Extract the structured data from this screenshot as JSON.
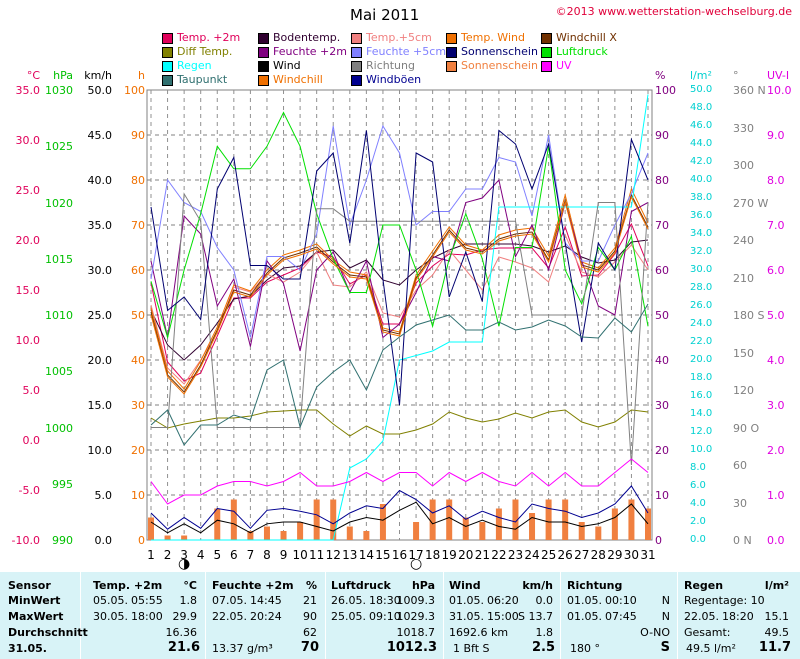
{
  "header": {
    "title": "Mai 2011",
    "copyright": "©2013 www.wetterstation-wechselburg.de"
  },
  "legend": [
    {
      "label": "Temp. +2m",
      "color": "#e0005a"
    },
    {
      "label": "Bodentemp.",
      "color": "#300030"
    },
    {
      "label": "Temp.+5cm",
      "color": "#f08080"
    },
    {
      "label": "Temp. Wind",
      "color": "#f07000"
    },
    {
      "label": "Windchill X",
      "color": "#703000"
    },
    {
      "label": "Diff Temp.",
      "color": "#808000"
    },
    {
      "label": "Feuchte +2m",
      "color": "#800080"
    },
    {
      "label": "Feuchte +5cm",
      "color": "#8080ff"
    },
    {
      "label": "Sonnenschein",
      "color": "#000070"
    },
    {
      "label": "Luftdruck",
      "color": "#00e000"
    },
    {
      "label": "Regen",
      "color": "#00ffff"
    },
    {
      "label": "Wind",
      "color": "#000000"
    },
    {
      "label": "Richtung",
      "color": "#808080"
    },
    {
      "label": "Sonnenschein",
      "color": "#f08040"
    },
    {
      "label": "UV",
      "color": "#ff00ff"
    },
    {
      "label": "Taupunkt",
      "color": "#307070"
    },
    {
      "label": "Windchill",
      "color": "#f07000"
    },
    {
      "label": "Windböen",
      "color": "#000090"
    }
  ],
  "axes": {
    "temp": {
      "name": "°C",
      "color": "#e0005a",
      "ticks": [
        "35.0",
        "30.0",
        "25.0",
        "20.0",
        "15.0",
        "10.0",
        "5.0",
        "0.0",
        "-5.0",
        "-10.0"
      ]
    },
    "pressure": {
      "name": "hPa",
      "color": "#00c000",
      "ticks": [
        "1030",
        "1025",
        "1020",
        "1015",
        "1010",
        "1005",
        "1000",
        "995",
        "990"
      ]
    },
    "wind": {
      "name": "km/h",
      "color": "#000000",
      "ticks": [
        "50.0",
        "45.0",
        "40.0",
        "35.0",
        "30.0",
        "25.0",
        "20.0",
        "15.0",
        "10.0",
        "5.0",
        "0.0"
      ]
    },
    "sun": {
      "name": "h",
      "color": "#f07000",
      "ticks": [
        "100",
        "90",
        "80",
        "70",
        "60",
        "50",
        "40",
        "30",
        "20",
        "10",
        "0"
      ]
    },
    "humidity": {
      "name": "%",
      "color": "#800080",
      "ticks": [
        "100",
        "90",
        "80",
        "70",
        "60",
        "50",
        "40",
        "30",
        "20",
        "10",
        "0"
      ]
    },
    "rain": {
      "name": "l/m²",
      "color": "#00d0d0",
      "ticks": [
        "50.0",
        "48.0",
        "46.0",
        "44.0",
        "42.0",
        "40.0",
        "38.0",
        "36.0",
        "34.0",
        "32.0",
        "30.0",
        "28.0",
        "26.0",
        "24.0",
        "22.0",
        "20.0",
        "18.0",
        "16.0",
        "14.0",
        "12.0",
        "10.0",
        "8.0",
        "6.0",
        "4.0",
        "2.0",
        "0.0"
      ]
    },
    "dir": {
      "name": "°",
      "color": "#808080",
      "ticks": [
        "360 N",
        "330",
        "300",
        "270 W",
        "240",
        "210",
        "180 S",
        "150",
        "120",
        "90 O",
        "60",
        "30",
        "0 N"
      ]
    },
    "uv": {
      "name": "UV-I",
      "color": "#e000e0",
      "ticks": [
        "10.0",
        "9.0",
        "8.0",
        "7.0",
        "6.0",
        "5.0",
        "4.0",
        "3.0",
        "2.0",
        "1.0",
        "0.0"
      ]
    }
  },
  "chart_data": {
    "type": "line",
    "x": [
      1,
      2,
      3,
      4,
      5,
      6,
      7,
      8,
      9,
      10,
      11,
      12,
      13,
      14,
      15,
      16,
      17,
      18,
      19,
      20,
      21,
      22,
      23,
      24,
      25,
      26,
      27,
      28,
      29,
      30,
      31
    ],
    "x_tick_labels": [
      "1",
      "2",
      "3",
      "4",
      "5",
      "6",
      "7",
      "8",
      "9",
      "10",
      "11",
      "12",
      "13",
      "14",
      "15",
      "16",
      "17",
      "18",
      "19",
      "20",
      "21",
      "22",
      "23",
      "24",
      "25",
      "26",
      "27",
      "28",
      "29",
      "30",
      "31"
    ],
    "moon_phases": [
      {
        "day": 3,
        "symbol": "◑"
      },
      {
        "day": 17,
        "symbol": "○"
      }
    ],
    "series": [
      {
        "name": "Temp. +2m",
        "axis": "temp",
        "color": "#e0005a",
        "values": [
          15.7,
          7.8,
          5.9,
          6.7,
          10.4,
          14.2,
          14.2,
          15.8,
          16.5,
          17.2,
          18.8,
          18.3,
          15.6,
          16.5,
          11.6,
          11.6,
          15.7,
          17.4,
          18.6,
          18.5,
          19.0,
          19.2,
          19.2,
          19.2,
          17.2,
          21.3,
          16.4,
          16.5,
          18.6,
          21.6,
          17.4
        ]
      },
      {
        "name": "Bodentemp.",
        "axis": "temp",
        "color": "#300030",
        "values": [
          13.0,
          9.5,
          8.0,
          9.5,
          11.7,
          14.1,
          14.4,
          16.0,
          17.2,
          17.4,
          18.8,
          19.0,
          17.2,
          18.0,
          16.0,
          15.5,
          17.0,
          18.2,
          19.0,
          19.6,
          19.6,
          19.6,
          19.6,
          19.4,
          18.8,
          19.4,
          18.3,
          17.7,
          18.0,
          19.8,
          20.0
        ]
      },
      {
        "name": "Temp.+5cm",
        "axis": "temp",
        "color": "#f08080",
        "values": [
          13.5,
          7.2,
          5.6,
          8.0,
          10.8,
          15.3,
          14.8,
          16.6,
          15.8,
          16.8,
          18.8,
          15.5,
          15.3,
          16.8,
          12.7,
          12.3,
          15.0,
          16.5,
          19.0,
          17.0,
          15.0,
          18.3,
          17.8,
          17.2,
          15.8,
          20.5,
          16.8,
          16.3,
          17.8,
          19.5,
          17.0
        ]
      },
      {
        "name": "Temp. Wind",
        "axis": "temp",
        "color": "#f07000",
        "values": [
          13.2,
          6.9,
          5.1,
          7.9,
          11.3,
          15.5,
          14.9,
          17.0,
          18.5,
          19.0,
          19.6,
          18.0,
          16.8,
          16.5,
          11.2,
          10.8,
          16.5,
          18.9,
          21.3,
          19.5,
          19.0,
          20.5,
          21.0,
          21.2,
          18.4,
          24.5,
          17.8,
          17.2,
          19.2,
          25.1,
          21.7
        ]
      },
      {
        "name": "Windchill X",
        "axis": "temp",
        "color": "#703000",
        "values": [
          12.8,
          6.5,
          4.8,
          7.5,
          11.0,
          15.0,
          14.5,
          16.7,
          18.2,
          18.7,
          19.3,
          17.8,
          16.5,
          16.3,
          11.0,
          10.6,
          16.2,
          18.5,
          21.0,
          19.2,
          18.8,
          20.1,
          20.6,
          20.8,
          18.0,
          24.0,
          17.5,
          17.0,
          18.9,
          24.5,
          21.3
        ]
      },
      {
        "name": "Diff Temp.",
        "axis": "temp",
        "color": "#808000",
        "values": [
          2.2,
          1.2,
          1.6,
          1.9,
          2.2,
          2.2,
          2.4,
          2.8,
          2.9,
          3.0,
          3.0,
          1.6,
          0.4,
          1.4,
          0.6,
          0.6,
          1.0,
          1.6,
          2.8,
          2.2,
          1.8,
          2.1,
          2.7,
          2.2,
          2.8,
          3.0,
          1.8,
          1.3,
          1.8,
          3.0,
          2.8
        ]
      },
      {
        "name": "Feuchte +2m",
        "axis": "humidity",
        "color": "#800080",
        "values": [
          62,
          45,
          72,
          68,
          52,
          58,
          43,
          62,
          57,
          42,
          60,
          64,
          55,
          62,
          45,
          48,
          55,
          63,
          62,
          75,
          76,
          80,
          63,
          70,
          60,
          75,
          62,
          52,
          50,
          73,
          75
        ]
      },
      {
        "name": "Feuchte +5cm",
        "axis": "humidity",
        "color": "#8080ff",
        "values": [
          58,
          80,
          75,
          73,
          65,
          60,
          45,
          63,
          63,
          60,
          68,
          92,
          70,
          80,
          92,
          86,
          70,
          73,
          73,
          78,
          78,
          85,
          84,
          72,
          90,
          66,
          62,
          62,
          70,
          77,
          86
        ]
      },
      {
        "name": "Luftdruck",
        "axis": "pressure",
        "color": "#00e000",
        "values": [
          1013,
          1008,
          1014,
          1019,
          1025,
          1023,
          1023,
          1025,
          1028,
          1025,
          1019,
          1015,
          1012,
          1012,
          1018,
          1018,
          1014,
          1009,
          1015,
          1019,
          1015,
          1009,
          1016,
          1016,
          1025,
          1014,
          1011,
          1016,
          1014,
          1017,
          1009
        ]
      },
      {
        "name": "Regen",
        "axis": "rain",
        "color": "#00ffff",
        "values": [
          0,
          0,
          0,
          0,
          0,
          0,
          0,
          0,
          0,
          0,
          0,
          0,
          8,
          9,
          11,
          20,
          20.5,
          21,
          22,
          22,
          22,
          37,
          37,
          37,
          37,
          37,
          37,
          37,
          37,
          37,
          49.5
        ]
      },
      {
        "name": "Wind",
        "axis": "wind",
        "color": "#000000",
        "values": [
          2.0,
          0.8,
          1.8,
          0.8,
          2.2,
          1.8,
          0.8,
          1.8,
          2.0,
          2.0,
          1.5,
          1.0,
          2.0,
          2.5,
          2.2,
          3.3,
          4.2,
          1.8,
          2.5,
          1.5,
          2.2,
          1.5,
          1.2,
          2.5,
          2.0,
          2.0,
          1.5,
          1.8,
          2.5,
          4.0,
          1.8
        ]
      },
      {
        "name": "Windböen",
        "axis": "wind",
        "color": "#000090",
        "values": [
          3.0,
          1.2,
          2.5,
          1.3,
          3.5,
          3.2,
          1.3,
          3.3,
          3.5,
          3.2,
          2.8,
          1.8,
          3.0,
          3.8,
          3.5,
          5.5,
          4.5,
          3.0,
          3.8,
          2.3,
          3.2,
          2.5,
          2.0,
          4.0,
          3.5,
          3.2,
          2.5,
          3.0,
          4.0,
          6.0,
          3.0
        ]
      },
      {
        "name": "Richtung",
        "axis": "dir",
        "color": "#808080",
        "values": [
          90,
          90,
          277,
          255,
          90,
          90,
          90,
          90,
          90,
          90,
          265,
          265,
          255,
          255,
          255,
          255,
          255,
          255,
          255,
          255,
          255,
          255,
          255,
          180,
          180,
          180,
          180,
          270,
          270,
          60,
          270
        ]
      },
      {
        "name": "Sonnenschein",
        "axis": "sun",
        "color": "#000070",
        "values": [
          74,
          51,
          54,
          49,
          78,
          85,
          61,
          61,
          58,
          58,
          82,
          86,
          66,
          91,
          58,
          30,
          86,
          84,
          54,
          64,
          53,
          91,
          88,
          78,
          88,
          66,
          44,
          66,
          60,
          89,
          80
        ]
      },
      {
        "name": "UV",
        "axis": "uv",
        "color": "#ff00ff",
        "values": [
          1.3,
          0.8,
          1.0,
          1.0,
          1.2,
          1.3,
          1.3,
          1.2,
          1.3,
          1.5,
          1.2,
          1.2,
          1.3,
          1.5,
          1.3,
          1.5,
          1.5,
          1.2,
          1.5,
          1.3,
          1.5,
          1.3,
          1.2,
          1.5,
          1.2,
          1.5,
          1.2,
          1.2,
          1.5,
          1.8,
          1.5
        ]
      },
      {
        "name": "Taupunkt",
        "axis": "temp",
        "color": "#307070",
        "values": [
          1.5,
          3.0,
          -0.5,
          1.5,
          1.5,
          2.5,
          2.0,
          7.0,
          8.0,
          1.3,
          5.3,
          6.8,
          8.0,
          5.0,
          9.0,
          10.3,
          11.5,
          12.0,
          12.5,
          11.0,
          11.0,
          11.8,
          11.0,
          11.3,
          12.0,
          11.4,
          10.3,
          10.2,
          12.2,
          10.8,
          13.6
        ]
      },
      {
        "name": "Windchill",
        "axis": "temp",
        "color": "#f07000",
        "values": [
          12.5,
          6.3,
          4.6,
          7.3,
          10.8,
          14.8,
          14.3,
          16.5,
          18.0,
          18.5,
          19.1,
          17.6,
          16.3,
          16.1,
          10.8,
          10.4,
          16.0,
          18.3,
          20.8,
          19.0,
          18.6,
          19.9,
          20.4,
          20.6,
          17.8,
          23.8,
          17.3,
          16.8,
          18.7,
          24.3,
          21.1
        ]
      }
    ],
    "bars": {
      "name": "Sonnenschein",
      "axis": "sun",
      "color": "#f08040",
      "values": [
        5,
        1,
        1,
        0,
        7,
        9,
        2,
        3,
        2,
        4,
        9,
        9,
        3,
        2,
        8,
        0,
        4,
        9,
        9,
        5,
        4,
        7,
        9,
        6,
        9,
        9,
        4,
        3,
        7,
        9,
        7
      ]
    },
    "ylim": {
      "temp": [
        -10,
        35
      ],
      "pressure": [
        990,
        1030
      ],
      "wind": [
        0,
        50
      ],
      "sun": [
        0,
        100
      ],
      "humidity": [
        0,
        100
      ],
      "rain": [
        0,
        50
      ],
      "dir": [
        0,
        360
      ],
      "uv": [
        0,
        10
      ]
    },
    "grid": true
  },
  "stats": {
    "sensor_col": {
      "header": "Sensor",
      "rows": [
        "MinWert",
        "MaxWert",
        "Durchschnitt",
        "31.05."
      ]
    },
    "temp": {
      "header": "Temp. +2m",
      "unit": "°C",
      "min_date": "05.05.",
      "min_time": "05:55",
      "min": "1.8",
      "max_date": "30.05.",
      "max_time": "18:00",
      "max": "29.9",
      "avg": "16.36",
      "current": "21.6"
    },
    "humidity": {
      "header": "Feuchte +2m",
      "unit": "%",
      "min_date": "07.05.",
      "min_time": "14:45",
      "min": "21",
      "max_date": "22.05.",
      "max_time": "20:24",
      "max": "90",
      "avg": "62",
      "abs": "13.37 g/m³",
      "current": "70"
    },
    "pressure": {
      "header": "Luftdruck",
      "unit": "hPa",
      "min_date": "26.05.",
      "min_time": "18:30",
      "min": "1009.3",
      "max_date": "25.05.",
      "max_time": "09:10",
      "max": "1029.3",
      "avg": "1018.7",
      "current": "1012.3"
    },
    "wind": {
      "header": "Wind",
      "unit": "km/h",
      "min_date": "01.05.",
      "min_time": "06:20",
      "min": "0.0",
      "max_date": "31.05.",
      "max_time": "15:00",
      "max": "S 13.7",
      "dist": "1692.6 km",
      "avg": "1.8",
      "bft": "1 Bft S",
      "current": "2.5"
    },
    "dir": {
      "header": "Richtung",
      "min_date": "01.05.",
      "min_time": "00:10",
      "min": "N",
      "max_date": "01.05.",
      "max_time": "07:45",
      "max": "N",
      "avg": "O-NO",
      "deg": "180 °",
      "current": "S"
    },
    "rain": {
      "header": "Regen",
      "unit": "l/m²",
      "days_label": "Regentage: 10",
      "max_date": "22.05.",
      "max_time": "18:20",
      "max": "15.1",
      "total_label": "Gesamt:",
      "total": "49.5",
      "month": "49.5 l/m²",
      "current": "11.7"
    }
  }
}
